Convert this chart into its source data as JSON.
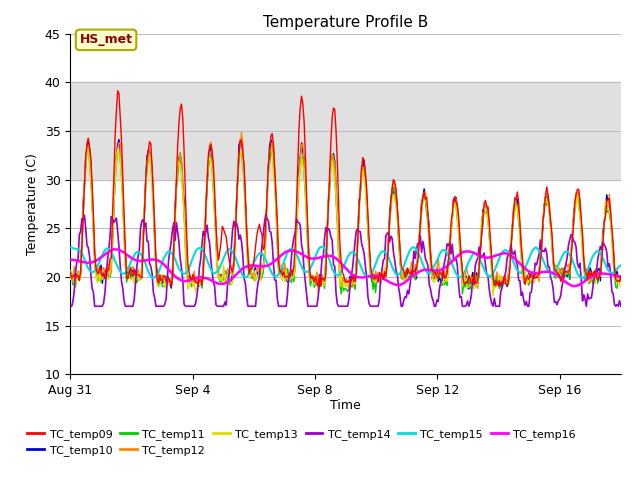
{
  "title": "Temperature Profile B",
  "xlabel": "Time",
  "ylabel": "Temperature (C)",
  "ylim": [
    10,
    45
  ],
  "yticks": [
    10,
    15,
    20,
    25,
    30,
    35,
    40,
    45
  ],
  "xtick_labels": [
    "Aug 31",
    "Sep 4",
    "Sep 8",
    "Sep 12",
    "Sep 16"
  ],
  "xtick_offsets_days": [
    0,
    4,
    8,
    12,
    16
  ],
  "annotation_text": "HS_met",
  "series_colors": {
    "TC_temp09": "#ff0000",
    "TC_temp10": "#0000cc",
    "TC_temp11": "#00cc00",
    "TC_temp12": "#ff8800",
    "TC_temp13": "#dddd00",
    "TC_temp14": "#9900cc",
    "TC_temp15": "#00dddd",
    "TC_temp16": "#ff00ff"
  },
  "shaded_band": [
    30,
    40
  ],
  "shaded_color": "#e0e0e0",
  "background_color": "#ffffff",
  "grid_color": "#bbbbbb",
  "total_days": 18
}
